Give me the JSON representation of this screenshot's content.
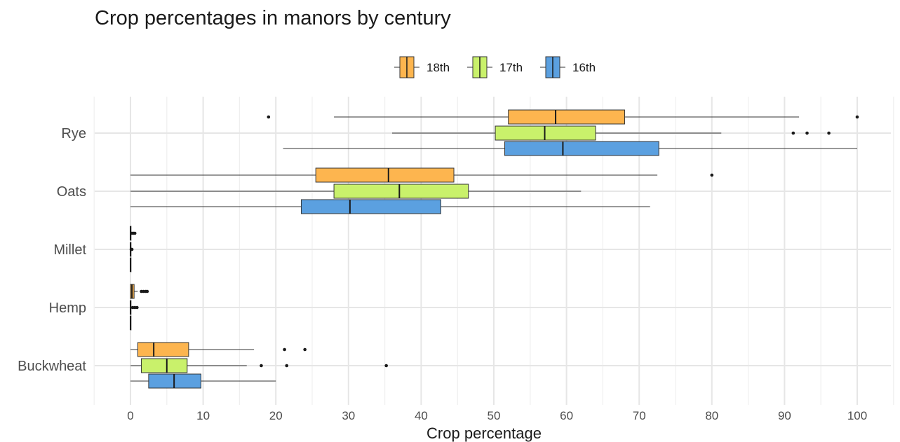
{
  "chart_data": {
    "type": "boxplot",
    "orientation": "horizontal",
    "title": "Crop percentages in manors by century",
    "xlabel": "Crop percentage",
    "ylabel": "",
    "xlim": [
      -5,
      105
    ],
    "xticks": [
      0,
      10,
      20,
      30,
      40,
      50,
      60,
      70,
      80,
      90,
      100
    ],
    "grid": true,
    "legend_position": "top",
    "categories": [
      "Rye",
      "Oats",
      "Millet",
      "Hemp",
      "Buckwheat"
    ],
    "series": [
      {
        "name": "18th",
        "color": "#FDB54F",
        "boxes": [
          {
            "category": "Rye",
            "min": 28,
            "q1": 52,
            "median": 58.5,
            "q3": 68,
            "max": 92,
            "outliers": [
              19,
              100
            ]
          },
          {
            "category": "Oats",
            "min": 0,
            "q1": 25.5,
            "median": 35.5,
            "q3": 44.5,
            "max": 72.5,
            "outliers": [
              80
            ]
          },
          {
            "category": "Millet",
            "min": 0,
            "q1": 0,
            "median": 0,
            "q3": 0,
            "max": 0,
            "outliers": [
              0.2,
              0.4,
              0.6
            ]
          },
          {
            "category": "Hemp",
            "min": 0,
            "q1": 0,
            "median": 0.2,
            "q3": 0.5,
            "max": 1,
            "outliers": [
              1.5,
              1.8,
              2.1,
              2.3
            ]
          },
          {
            "category": "Buckwheat",
            "min": 0,
            "q1": 1,
            "median": 3.2,
            "q3": 8,
            "max": 17,
            "outliers": [
              21.2,
              24
            ]
          }
        ]
      },
      {
        "name": "17th",
        "color": "#C9F16B",
        "boxes": [
          {
            "category": "Rye",
            "min": 36,
            "q1": 50.2,
            "median": 57,
            "q3": 64,
            "max": 81.3,
            "outliers": [
              91.2,
              93.1,
              96.1
            ]
          },
          {
            "category": "Oats",
            "min": 0,
            "q1": 28,
            "median": 37,
            "q3": 46.5,
            "max": 62,
            "outliers": []
          },
          {
            "category": "Millet",
            "min": 0,
            "q1": 0,
            "median": 0,
            "q3": 0,
            "max": 0,
            "outliers": [
              0.1,
              0.2
            ]
          },
          {
            "category": "Hemp",
            "min": 0,
            "q1": 0,
            "median": 0,
            "q3": 0,
            "max": 0,
            "outliers": [
              0.3,
              0.6,
              0.9
            ]
          },
          {
            "category": "Buckwheat",
            "min": 0,
            "q1": 1.5,
            "median": 5,
            "q3": 7.8,
            "max": 16,
            "outliers": [
              18,
              21.5,
              35.2
            ]
          }
        ]
      },
      {
        "name": "16th",
        "color": "#5BA0E0",
        "boxes": [
          {
            "category": "Rye",
            "min": 21,
            "q1": 51.5,
            "median": 59.5,
            "q3": 72.7,
            "max": 100,
            "outliers": []
          },
          {
            "category": "Oats",
            "min": 0,
            "q1": 23.5,
            "median": 30.2,
            "q3": 42.7,
            "max": 71.5,
            "outliers": []
          },
          {
            "category": "Millet",
            "min": 0,
            "q1": 0,
            "median": 0,
            "q3": 0,
            "max": 0,
            "outliers": []
          },
          {
            "category": "Hemp",
            "min": 0,
            "q1": 0,
            "median": 0,
            "q3": 0,
            "max": 0,
            "outliers": []
          },
          {
            "category": "Buckwheat",
            "min": 0,
            "q1": 2.5,
            "median": 6,
            "q3": 9.7,
            "max": 20,
            "outliers": []
          }
        ]
      }
    ]
  }
}
